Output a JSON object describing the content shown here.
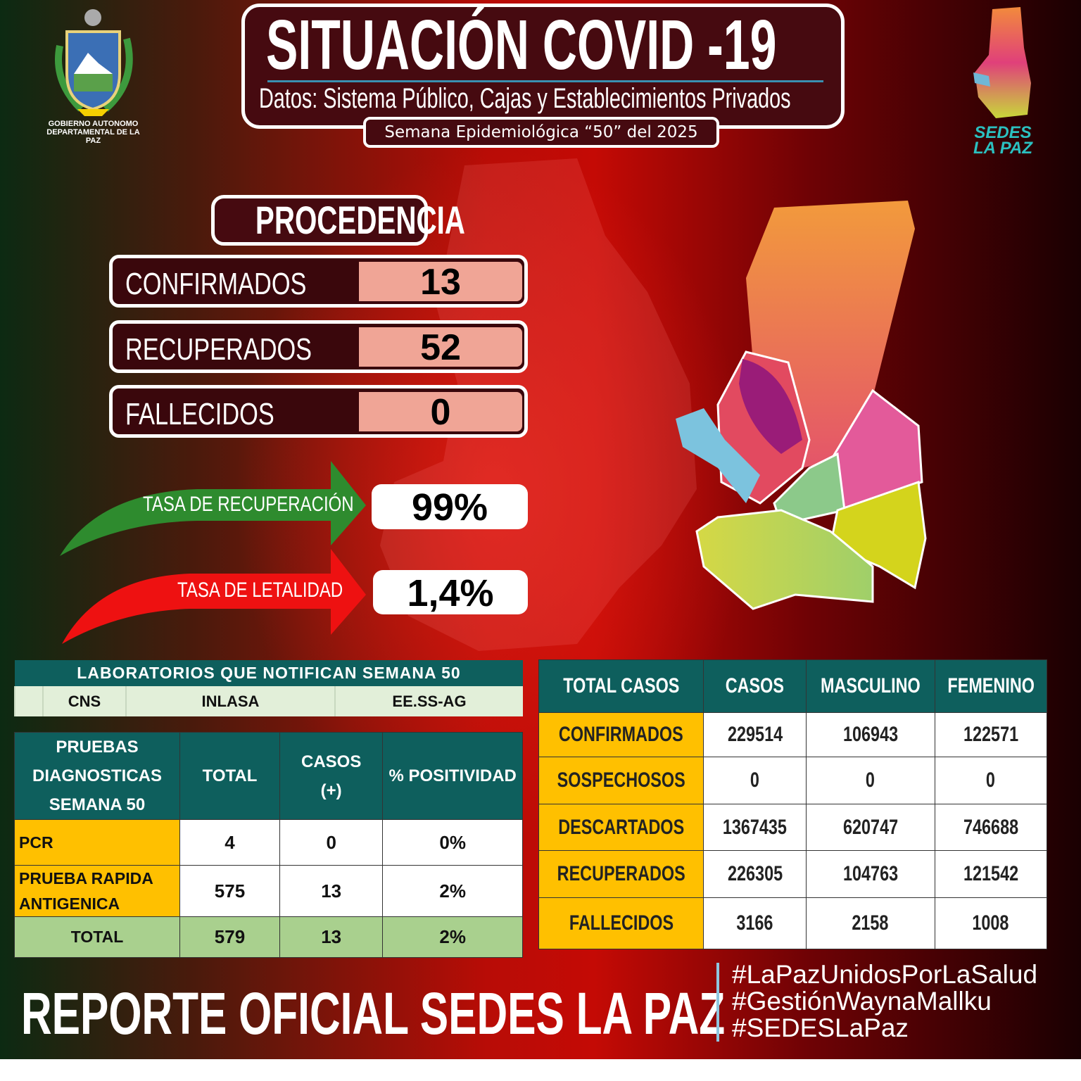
{
  "header": {
    "title": "SITUACIÓN COVID -19",
    "subtitle": "Datos: Sistema Público, Cajas y Establecimientos Privados",
    "week": "Semana  Epidemiológica “50” del  2025"
  },
  "logos": {
    "left": "GOBIERNO AUTONOMO DEPARTAMENTAL DE LA PAZ",
    "right": "SEDES LA PAZ"
  },
  "procedencia": {
    "title": "PROCEDENCIA",
    "rows": [
      {
        "label": "CONFIRMADOS",
        "value": "13"
      },
      {
        "label": "RECUPERADOS",
        "value": "52"
      },
      {
        "label": "FALLECIDOS",
        "value": "0"
      }
    ]
  },
  "rates": {
    "recovery_label": "TASA DE RECUPERACIÓN",
    "recovery_value": "99%",
    "lethality_label": "TASA DE LETALIDAD",
    "lethality_value": "1,4%",
    "recovery_color": "#2e8b2e",
    "lethality_color": "#ee1111"
  },
  "labs": {
    "title": "LABORATORIOS QUE NOTIFICAN SEMANA 50",
    "items": [
      "CNS",
      "INLASA",
      "EE.SS-AG"
    ]
  },
  "pruebas": {
    "headers": [
      "PRUEBAS DIAGNOSTICAS SEMANA 50",
      "TOTAL",
      "CASOS (+)",
      "% POSITIVIDAD"
    ],
    "rows": [
      [
        "PCR",
        "4",
        "0",
        "0%"
      ],
      [
        "PRUEBA RAPIDA ANTIGENICA",
        "575",
        "13",
        "2%"
      ]
    ],
    "total": [
      "TOTAL",
      "579",
      "13",
      "2%"
    ]
  },
  "total_casos": {
    "headers": [
      "TOTAL CASOS",
      "CASOS",
      "MASCULINO",
      "FEMENINO"
    ],
    "rows": [
      [
        "CONFIRMADOS",
        "229514",
        "106943",
        "122571"
      ],
      [
        "SOSPECHOSOS",
        "0",
        "0",
        "0"
      ],
      [
        "DESCARTADOS",
        "1367435",
        "620747",
        "746688"
      ],
      [
        "RECUPERADOS",
        "226305",
        "104763",
        "121542"
      ],
      [
        "FALLECIDOS",
        "3166",
        "2158",
        "1008"
      ]
    ]
  },
  "footer": {
    "title": "REPORTE OFICIAL SEDES LA PAZ",
    "hashtags": [
      "#LaPazUnidosPorLaSalud",
      "#GestiónWaynaMallku",
      "#SEDESLaPaz"
    ]
  },
  "colors": {
    "teal": "#0e5f5d",
    "yellow": "#ffc000",
    "green": "#a9d08e",
    "maroon": "#460a10",
    "pink": "#f0a596"
  }
}
